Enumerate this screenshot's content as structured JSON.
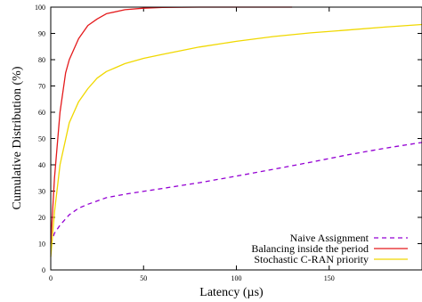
{
  "chart_data": {
    "type": "line",
    "xlabel": "Latency (µs)",
    "ylabel": "Cumulative Distribution (%)",
    "xlim": [
      0,
      200
    ],
    "ylim": [
      0,
      100
    ],
    "xticks": [
      "0",
      "50",
      "100",
      "150",
      "200"
    ],
    "yticks": [
      "0",
      "10",
      "20",
      "30",
      "40",
      "50",
      "60",
      "70",
      "80",
      "90",
      "100"
    ],
    "legend_position": "bottom-right",
    "grid": false,
    "series": [
      {
        "name": "Naive Assignment",
        "color": "#9400d3",
        "style": "dashed",
        "x": [
          0,
          2,
          5,
          10,
          15,
          20,
          30,
          40,
          60,
          80,
          100,
          120,
          140,
          160,
          180,
          200
        ],
        "y": [
          10,
          14,
          17,
          21,
          23.5,
          25,
          27.5,
          28.8,
          31,
          33.2,
          35.7,
          38.3,
          41,
          43.8,
          46.3,
          48.5
        ]
      },
      {
        "name": "Balancing inside the period",
        "color": "#e41a1c",
        "style": "solid",
        "x": [
          0,
          2,
          5,
          8,
          10,
          15,
          20,
          25,
          30,
          40,
          50,
          60,
          80,
          100,
          130
        ],
        "y": [
          10,
          35,
          60,
          75,
          80,
          88,
          93,
          95.5,
          97.5,
          99,
          99.6,
          99.9,
          100,
          100,
          100
        ]
      },
      {
        "name": "Stochastic C-RAN priority",
        "color": "#f0d800",
        "style": "solid",
        "x": [
          0,
          2,
          5,
          10,
          15,
          20,
          25,
          30,
          40,
          50,
          60,
          80,
          100,
          120,
          140,
          160,
          180,
          200
        ],
        "y": [
          5,
          22,
          40,
          56,
          64,
          69,
          73,
          75.5,
          78.5,
          80.5,
          82,
          84.8,
          87,
          88.8,
          90.2,
          91.3,
          92.4,
          93.4
        ]
      }
    ]
  }
}
